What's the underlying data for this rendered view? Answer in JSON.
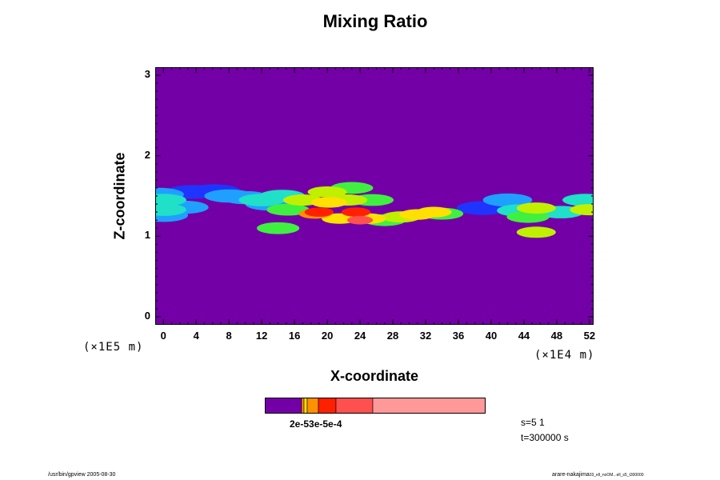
{
  "chart_data": {
    "type": "heatmap",
    "title": "Mixing Ratio",
    "xlabel": "X-coordinate",
    "ylabel": "Z-coordinate",
    "xlim": [
      -1,
      52.5
    ],
    "ylim": [
      -0.1,
      3.1
    ],
    "x_ticks": [
      "0",
      "4",
      "8",
      "12",
      "16",
      "20",
      "24",
      "28",
      "32",
      "36",
      "40",
      "44",
      "48",
      "52"
    ],
    "y_ticks": [
      "0",
      "1",
      "2",
      "3"
    ],
    "x_scale_label": "(×1E4 m)",
    "y_scale_label": "(×1E5 m)",
    "background_color": "#7300a6",
    "palette": [
      "#7300a6",
      "#1f35ff",
      "#1fa0ff",
      "#20e0c8",
      "#40f040",
      "#c0f000",
      "#ffe000",
      "#ff9000",
      "#ff2000",
      "#ff5050",
      "#ff9898"
    ],
    "cells": [
      {
        "x": -0.5,
        "z": 1.52,
        "level": 2
      },
      {
        "x": 0,
        "z": 1.45,
        "level": 3
      },
      {
        "x": 0,
        "z": 1.33,
        "level": 3
      },
      {
        "x": 0,
        "z": 1.26,
        "level": 2
      },
      {
        "x": 2.5,
        "z": 1.36,
        "level": 2
      },
      {
        "x": 3.5,
        "z": 1.55,
        "level": 1
      },
      {
        "x": 6.2,
        "z": 1.56,
        "level": 1
      },
      {
        "x": 8,
        "z": 1.5,
        "level": 2
      },
      {
        "x": 10,
        "z": 1.48,
        "level": 2
      },
      {
        "x": 12,
        "z": 1.45,
        "level": 3
      },
      {
        "x": 13,
        "z": 1.4,
        "level": 2
      },
      {
        "x": 14.5,
        "z": 1.5,
        "level": 3
      },
      {
        "x": 15.2,
        "z": 1.33,
        "level": 4
      },
      {
        "x": 14,
        "z": 1.1,
        "level": 4
      },
      {
        "x": 17,
        "z": 1.45,
        "level": 5
      },
      {
        "x": 18.5,
        "z": 1.28,
        "level": 7
      },
      {
        "x": 19,
        "z": 1.3,
        "level": 8
      },
      {
        "x": 20,
        "z": 1.55,
        "level": 5
      },
      {
        "x": 20.2,
        "z": 1.42,
        "level": 6
      },
      {
        "x": 21.5,
        "z": 1.22,
        "level": 6
      },
      {
        "x": 22.5,
        "z": 1.45,
        "level": 5
      },
      {
        "x": 23,
        "z": 1.6,
        "level": 4
      },
      {
        "x": 23.5,
        "z": 1.3,
        "level": 8
      },
      {
        "x": 24,
        "z": 1.2,
        "level": 9
      },
      {
        "x": 25.5,
        "z": 1.45,
        "level": 4
      },
      {
        "x": 25,
        "z": 1.22,
        "level": 6
      },
      {
        "x": 27,
        "z": 1.2,
        "level": 4
      },
      {
        "x": 29,
        "z": 1.24,
        "level": 5
      },
      {
        "x": 31,
        "z": 1.27,
        "level": 6
      },
      {
        "x": 33,
        "z": 1.3,
        "level": 6
      },
      {
        "x": 34,
        "z": 1.28,
        "level": 4
      },
      {
        "x": 39,
        "z": 1.35,
        "level": 1
      },
      {
        "x": 42,
        "z": 1.45,
        "level": 2
      },
      {
        "x": 43.5,
        "z": 1.32,
        "level": 3
      },
      {
        "x": 44.5,
        "z": 1.24,
        "level": 4
      },
      {
        "x": 45.5,
        "z": 1.05,
        "level": 5
      },
      {
        "x": 45.5,
        "z": 1.35,
        "level": 5
      },
      {
        "x": 48.5,
        "z": 1.3,
        "level": 3
      },
      {
        "x": 51.5,
        "z": 1.45,
        "level": 3
      },
      {
        "x": 52,
        "z": 1.33,
        "level": 5
      }
    ],
    "colorbar": {
      "colors": [
        "#7300a6",
        "#ff9000",
        "#ffe000",
        "#ff9000",
        "#ff2000",
        "#ff5050",
        "#ff9898"
      ],
      "labels": "2e-53e-5e-4"
    },
    "annotations": {
      "scale": "s=5 1",
      "time": "t=300000 s",
      "footer_left": "/usr/bin/gpview 2005-08-30",
      "footer_right": "arare-nakajima",
      "footer_right_small": "03_ell_noOM...ell_s5_t300000"
    }
  }
}
